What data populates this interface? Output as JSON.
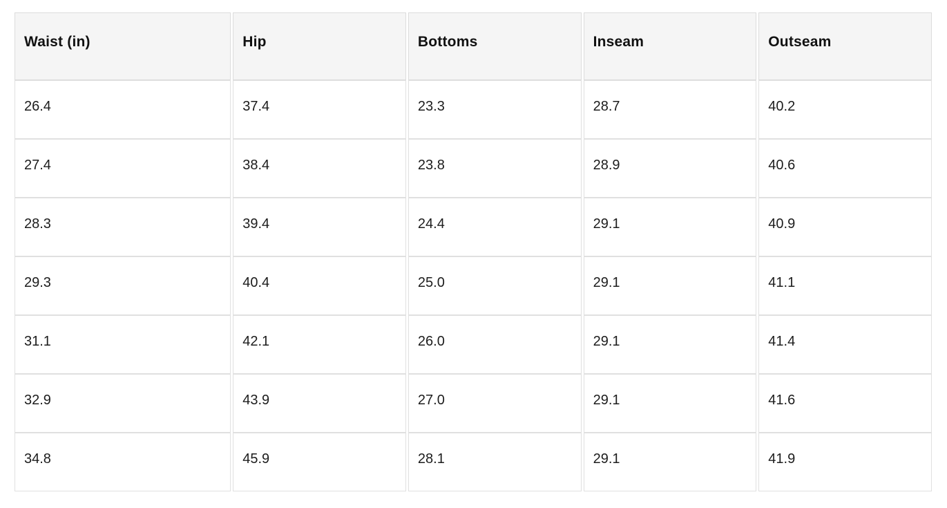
{
  "table": {
    "columns": [
      "Waist (in)",
      "Hip",
      "Bottoms",
      "Inseam",
      "Outseam"
    ],
    "rows": [
      [
        "26.4",
        "37.4",
        "23.3",
        "28.7",
        "40.2"
      ],
      [
        "27.4",
        "38.4",
        "23.8",
        "28.9",
        "40.6"
      ],
      [
        "28.3",
        "39.4",
        "24.4",
        "29.1",
        "40.9"
      ],
      [
        "29.3",
        "40.4",
        "25.0",
        "29.1",
        "41.1"
      ],
      [
        "31.1",
        "42.1",
        "26.0",
        "29.1",
        "41.4"
      ],
      [
        "32.9",
        "43.9",
        "27.0",
        "29.1",
        "41.6"
      ],
      [
        "34.8",
        "45.9",
        "28.1",
        "29.1",
        "41.9"
      ]
    ]
  },
  "colors": {
    "header_background": "#f5f5f5",
    "border": "#dcdcdc",
    "text": "#1c1c1c"
  }
}
